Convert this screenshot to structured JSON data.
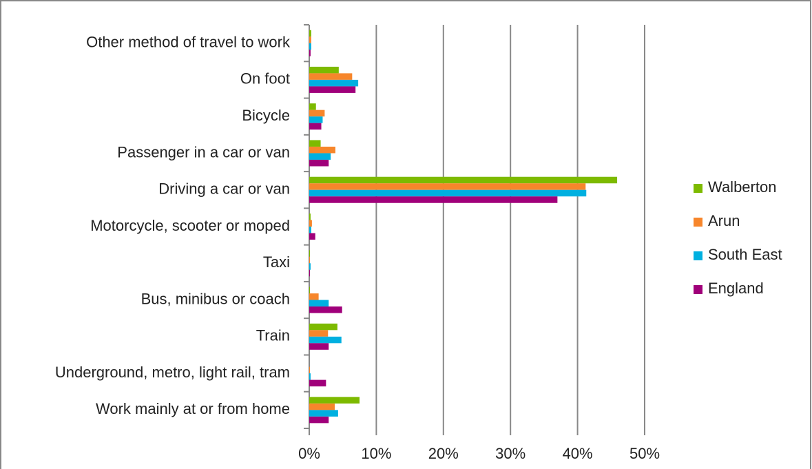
{
  "chart_data": {
    "type": "bar",
    "orientation": "horizontal",
    "categories": [
      "Other method of travel to work",
      "On foot",
      "Bicycle",
      "Passenger in a car or van",
      "Driving a car or van",
      "Motorcycle, scooter or moped",
      "Taxi",
      "Bus, minibus or coach",
      "Train",
      "Underground, metro, light rail, tram",
      "Work mainly at or from home"
    ],
    "series": [
      {
        "name": "Walberton",
        "color": "#7dba00",
        "values": [
          0.3,
          4.4,
          1.0,
          1.7,
          45.9,
          0.2,
          0.1,
          0.1,
          4.2,
          0,
          7.5
        ]
      },
      {
        "name": "Arun",
        "color": "#f7862b",
        "values": [
          0.3,
          6.4,
          2.3,
          3.9,
          41.2,
          0.4,
          0.1,
          1.4,
          2.8,
          0.1,
          3.8
        ]
      },
      {
        "name": "South East",
        "color": "#00b0e0",
        "values": [
          0.3,
          7.3,
          2.0,
          3.2,
          41.3,
          0.3,
          0.2,
          2.9,
          4.8,
          0.2,
          4.3
        ]
      },
      {
        "name": "England",
        "color": "#a0007a",
        "values": [
          0.2,
          6.9,
          1.8,
          2.9,
          37.0,
          0.9,
          0.1,
          4.9,
          2.9,
          2.5,
          2.9
        ]
      }
    ],
    "xlim": [
      0,
      50
    ],
    "xticks": [
      {
        "value": 0,
        "label": "0%"
      },
      {
        "value": 10,
        "label": "10%"
      },
      {
        "value": 20,
        "label": "20%"
      },
      {
        "value": 30,
        "label": "30%"
      },
      {
        "value": 40,
        "label": "40%"
      },
      {
        "value": 50,
        "label": "50%"
      }
    ],
    "grid": true,
    "legend": "right"
  }
}
